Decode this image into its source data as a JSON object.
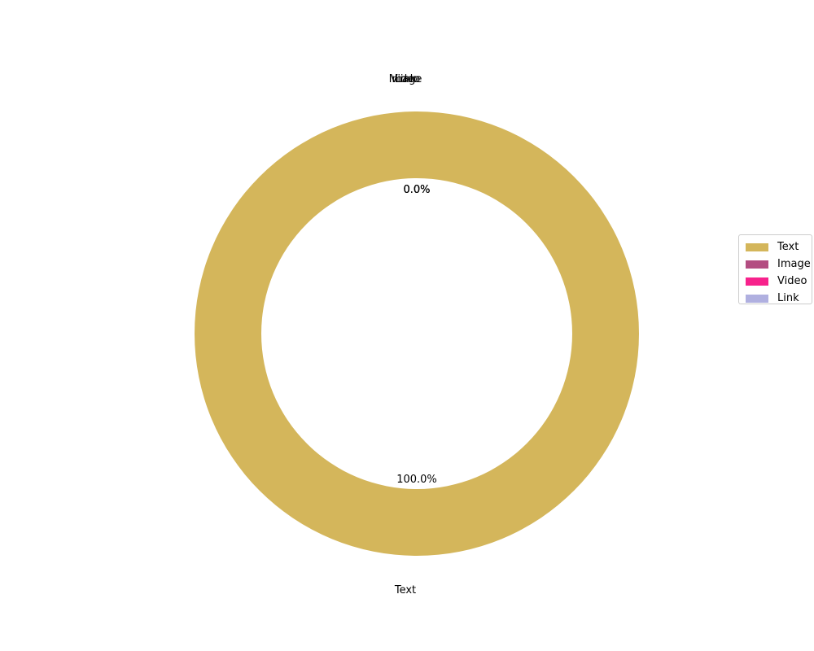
{
  "chart_data": {
    "type": "pie",
    "donut": true,
    "categories": [
      "Text",
      "Image",
      "Video",
      "Link"
    ],
    "values": [
      100.0,
      0.0,
      0.0,
      0.0
    ],
    "percent_labels": [
      "100.0%",
      "0.0%",
      "0.0%",
      "0.0%"
    ],
    "colors": [
      "#d4b65b",
      "#b34d81",
      "#f7228c",
      "#b0b0e0"
    ],
    "legend_position": "right",
    "title": ""
  },
  "legend": {
    "items": [
      {
        "label": "Text",
        "color": "#d4b65b"
      },
      {
        "label": "Image",
        "color": "#b34d81"
      },
      {
        "label": "Video",
        "color": "#f7228c"
      },
      {
        "label": "Link",
        "color": "#b0b0e0"
      }
    ]
  }
}
